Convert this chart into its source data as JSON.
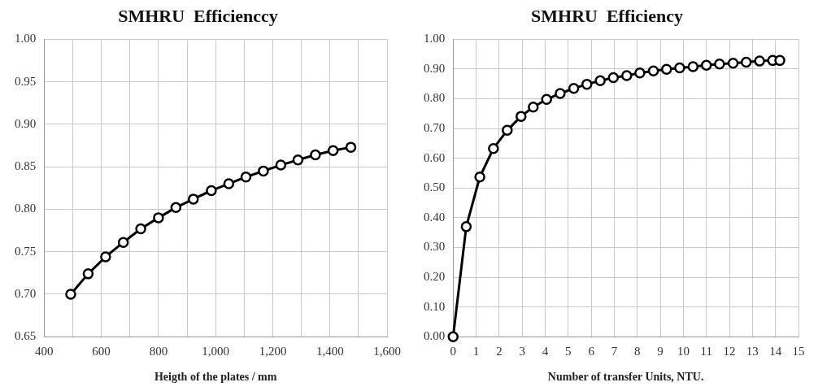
{
  "chart_data": [
    {
      "type": "line",
      "title": "SMHRU  Efficienccy",
      "xlabel": "Heigth of the plates / mm",
      "x": [
        493,
        554,
        615,
        677,
        738,
        800,
        861,
        922,
        985,
        1046,
        1106,
        1167,
        1228,
        1288,
        1349,
        1411,
        1473
      ],
      "series": [
        {
          "color": "#000000",
          "values": [
            0.7,
            0.724,
            0.744,
            0.761,
            0.777,
            0.79,
            0.802,
            0.812,
            0.822,
            0.83,
            0.838,
            0.845,
            0.852,
            0.858,
            0.864,
            0.869,
            0.873
          ]
        }
      ],
      "xlim": [
        400,
        1600
      ],
      "xticks": [
        {
          "value": 400,
          "label": "400"
        },
        {
          "value": 500,
          "label": null
        },
        {
          "value": 600,
          "label": "600"
        },
        {
          "value": 700,
          "label": null
        },
        {
          "value": 800,
          "label": "800"
        },
        {
          "value": 900,
          "label": null
        },
        {
          "value": 1000,
          "label": "1,000"
        },
        {
          "value": 1100,
          "label": null
        },
        {
          "value": 1200,
          "label": "1,200"
        },
        {
          "value": 1300,
          "label": null
        },
        {
          "value": 1400,
          "label": "1,400"
        },
        {
          "value": 1500,
          "label": null
        },
        {
          "value": 1600,
          "label": "1,600"
        }
      ],
      "ylim": [
        0.65,
        1.0
      ],
      "yticks": [
        {
          "value": 0.65,
          "label": "0.65"
        },
        {
          "value": 0.7,
          "label": "0.70"
        },
        {
          "value": 0.75,
          "label": "0.75"
        },
        {
          "value": 0.8,
          "label": "0.80"
        },
        {
          "value": 0.85,
          "label": "0.85"
        },
        {
          "value": 0.9,
          "label": "0.90"
        },
        {
          "value": 0.95,
          "label": "0.95"
        },
        {
          "value": 1.0,
          "label": "1.00"
        }
      ],
      "grid": true,
      "legend": false,
      "marker": "circle",
      "line_style": "solid"
    },
    {
      "type": "line",
      "title": "SMHRU  Efficiency",
      "xlabel": "Number of transfer Units, NTU.",
      "x": [
        0,
        0.57,
        1.16,
        1.75,
        2.35,
        2.95,
        3.48,
        4.06,
        4.65,
        5.24,
        5.81,
        6.39,
        6.96,
        7.54,
        8.11,
        8.7,
        9.27,
        9.84,
        10.42,
        11.0,
        11.57,
        12.16,
        12.73,
        13.31,
        13.88,
        14.19
      ],
      "series": [
        {
          "color": "#000000",
          "values": [
            0,
            0.37,
            0.537,
            0.633,
            0.694,
            0.741,
            0.772,
            0.798,
            0.818,
            0.835,
            0.849,
            0.861,
            0.871,
            0.878,
            0.887,
            0.894,
            0.899,
            0.904,
            0.908,
            0.913,
            0.917,
            0.92,
            0.923,
            0.927,
            0.929,
            0.929
          ]
        }
      ],
      "xlim": [
        0,
        15
      ],
      "xticks": [
        0,
        1,
        2,
        3,
        4,
        5,
        6,
        7,
        8,
        9,
        10,
        11,
        12,
        13,
        14,
        15
      ],
      "ylim": [
        0,
        1.0
      ],
      "yticks": [
        {
          "value": 0,
          "label": "0.00"
        },
        {
          "value": 0.1,
          "label": "0.10"
        },
        {
          "value": 0.2,
          "label": "0.20"
        },
        {
          "value": 0.3,
          "label": "0.30"
        },
        {
          "value": 0.4,
          "label": "0.40"
        },
        {
          "value": 0.5,
          "label": "0.50"
        },
        {
          "value": 0.6,
          "label": "0.60"
        },
        {
          "value": 0.7,
          "label": "0.70"
        },
        {
          "value": 0.8,
          "label": "0.80"
        },
        {
          "value": 0.9,
          "label": "0.90"
        },
        {
          "value": 1.0,
          "label": "1.00"
        }
      ],
      "grid": true,
      "legend": false,
      "marker": "circle",
      "line_style": "solid"
    }
  ]
}
